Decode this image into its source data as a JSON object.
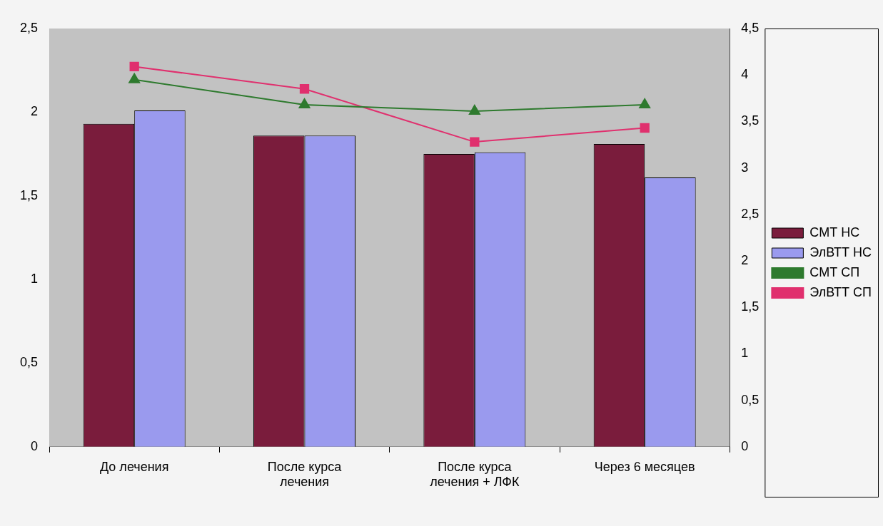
{
  "chart_data": {
    "type": "bar",
    "categories": [
      "До лечения",
      "После курса лечения",
      "После курса лечения + ЛФК",
      "Через 6 месяцев"
    ],
    "series": [
      {
        "name": "СМТ НС",
        "color": "#7a1c3c",
        "values": [
          1.93,
          1.86,
          1.75,
          1.81
        ]
      },
      {
        "name": "ЭлВТТ НС",
        "color": "#9a9aee",
        "values": [
          2.01,
          1.86,
          1.76,
          1.61
        ]
      },
      {
        "name": "СМТ СП",
        "type": "line",
        "axis": "y2",
        "marker": "triangle",
        "color": "#2e7a2e",
        "values": [
          3.95,
          3.68,
          3.61,
          3.68
        ]
      },
      {
        "name": "ЭлВТТ СП",
        "type": "line",
        "axis": "y2",
        "marker": "square",
        "color": "#e0306e",
        "values": [
          4.09,
          3.85,
          3.28,
          3.43
        ]
      }
    ],
    "ylim": [
      0,
      2.5
    ],
    "yticks": [
      0,
      {
        "value": 0.5,
        "label": "0,5"
      },
      1,
      {
        "value": 1.5,
        "label": "1,5"
      },
      2,
      {
        "value": 2.5,
        "label": "2,5"
      }
    ],
    "y2lim": [
      0,
      4.5
    ],
    "y2ticks": [
      0,
      {
        "value": 0.5,
        "label": "0,5"
      },
      1,
      {
        "value": 1.5,
        "label": "1,5"
      },
      2,
      {
        "value": 2.5,
        "label": "2,5"
      },
      3,
      {
        "value": 3.5,
        "label": "3,5"
      },
      4,
      {
        "value": 4.5,
        "label": "4,5"
      }
    ],
    "grid": false,
    "legend": "right",
    "line_style": "solid"
  }
}
